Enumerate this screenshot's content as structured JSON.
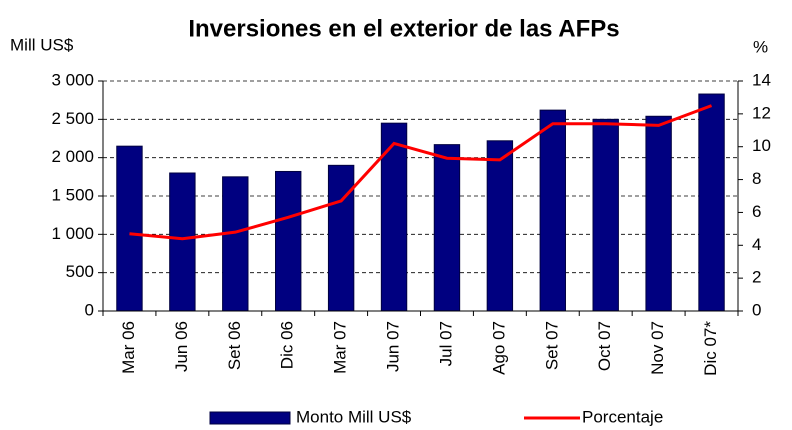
{
  "chart_data": {
    "type": "bar_line",
    "title": "Inversiones en el exterior de las AFPs",
    "y_label": "Mill US$",
    "y2_label": "%",
    "categories": [
      "Mar 06",
      "Jun 06",
      "Set 06",
      "Dic 06",
      "Mar 07",
      "Jun 07",
      "Jul 07",
      "Ago 07",
      "Set 07",
      "Oct 07",
      "Nov 07",
      "Dic 07*"
    ],
    "series": [
      {
        "name": "Monto Mill US$",
        "type": "bar",
        "color": "#000080",
        "values": [
          2150,
          1800,
          1750,
          1820,
          1900,
          2450,
          2170,
          2220,
          2620,
          2500,
          2540,
          2830
        ]
      },
      {
        "name": "Porcentaje",
        "type": "line",
        "axis": "y2",
        "color": "#ff0000",
        "values": [
          4.7,
          4.4,
          4.8,
          5.7,
          6.7,
          10.2,
          9.3,
          9.2,
          11.4,
          11.4,
          11.3,
          12.5
        ]
      }
    ],
    "ylim": [
      0,
      3000
    ],
    "yticks": [
      0,
      500,
      {
        "value": 1000,
        "label": "1 000"
      },
      {
        "value": 1500,
        "label": "1 500"
      },
      {
        "value": 2000,
        "label": "2 000"
      },
      {
        "value": 2500,
        "label": "2 500"
      },
      {
        "value": 3000,
        "label": "3 000"
      }
    ],
    "y2lim": [
      0,
      14
    ],
    "y2ticks": [
      0,
      2,
      4,
      6,
      8,
      10,
      12,
      14
    ],
    "grid": true,
    "legend": "bottom"
  }
}
